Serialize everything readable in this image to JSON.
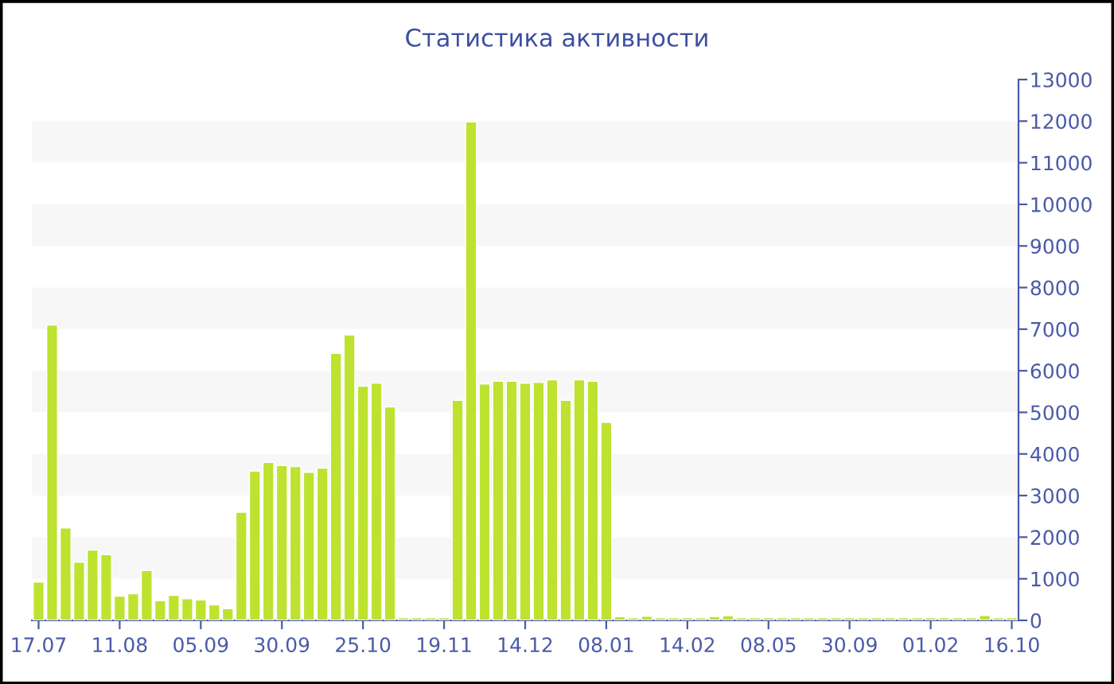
{
  "chart_data": {
    "type": "bar",
    "title": "Статистика активности",
    "categories": [
      "17.07",
      null,
      null,
      null,
      null,
      null,
      "11.08",
      null,
      null,
      null,
      null,
      null,
      "05.09",
      null,
      null,
      null,
      null,
      null,
      "30.09",
      null,
      null,
      null,
      null,
      null,
      "25.10",
      null,
      null,
      null,
      null,
      null,
      "19.11",
      null,
      null,
      null,
      null,
      null,
      "14.12",
      null,
      null,
      null,
      null,
      null,
      "08.01",
      null,
      null,
      null,
      null,
      null,
      "14.02",
      null,
      null,
      null,
      null,
      null,
      "08.05",
      null,
      null,
      null,
      null,
      null,
      "30.09",
      null,
      null,
      null,
      null,
      null,
      "01.02",
      null,
      null,
      null,
      null,
      null,
      "16.10"
    ],
    "values": [
      920,
      7100,
      2220,
      1400,
      1690,
      1580,
      580,
      640,
      1200,
      470,
      600,
      520,
      490,
      370,
      280,
      2600,
      3590,
      3800,
      3720,
      3700,
      3560,
      3660,
      6420,
      6860,
      5630,
      5700,
      5130,
      60,
      60,
      60,
      60,
      5290,
      11980,
      5680,
      5750,
      5750,
      5700,
      5720,
      5780,
      5290,
      5780,
      5750,
      4760,
      90,
      60,
      100,
      60,
      60,
      60,
      60,
      90,
      110,
      60,
      60,
      60,
      60,
      60,
      60,
      60,
      60,
      60,
      60,
      60,
      60,
      60,
      60,
      60,
      60,
      60,
      60,
      120,
      60,
      60
    ],
    "color": "#bde22f",
    "ylim": [
      0,
      13000
    ],
    "yticks": [
      0,
      1000,
      2000,
      3000,
      4000,
      5000,
      6000,
      7000,
      8000,
      9000,
      10000,
      11000,
      12000,
      13000
    ],
    "bands": [
      {
        "axis": "y",
        "from": 1000,
        "to": 2000,
        "color": "#f7f7f7"
      },
      {
        "axis": "y",
        "from": 3000,
        "to": 4000,
        "color": "#f7f7f7"
      },
      {
        "axis": "y",
        "from": 5000,
        "to": 6000,
        "color": "#f7f7f7"
      },
      {
        "axis": "y",
        "from": 7000,
        "to": 8000,
        "color": "#f7f7f7"
      },
      {
        "axis": "y",
        "from": 9000,
        "to": 10000,
        "color": "#f7f7f7"
      },
      {
        "axis": "y",
        "from": 11000,
        "to": 12000,
        "color": "#f7f7f7"
      }
    ]
  }
}
